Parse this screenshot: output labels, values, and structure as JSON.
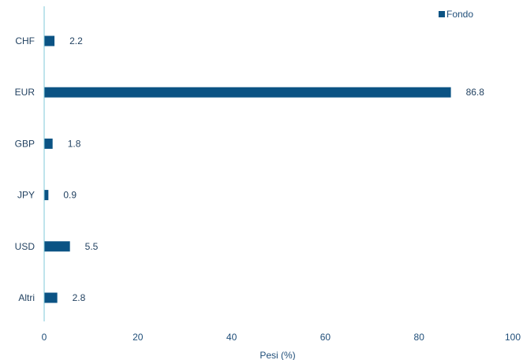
{
  "chart_data": {
    "type": "bar",
    "orientation": "horizontal",
    "categories": [
      "CHF",
      "EUR",
      "GBP",
      "JPY",
      "USD",
      "Altri"
    ],
    "series": [
      {
        "name": "Fondo",
        "values": [
          2.2,
          86.8,
          1.8,
          0.9,
          5.5,
          2.8
        ],
        "color": "#0b5384"
      }
    ],
    "data_labels": [
      "2.2",
      "86.8",
      "1.8",
      "0.9",
      "5.5",
      "2.8"
    ],
    "xlabel": "Pesi (%)",
    "ylabel": "",
    "xlim": [
      0,
      100
    ],
    "x_ticks": [
      0,
      20,
      40,
      60,
      80,
      100
    ],
    "grid": false,
    "legend": {
      "placement": "top-right"
    },
    "colors": {
      "bar": "#0b5384",
      "axis": "#7fc8d8",
      "text": "#1f4e79"
    }
  }
}
